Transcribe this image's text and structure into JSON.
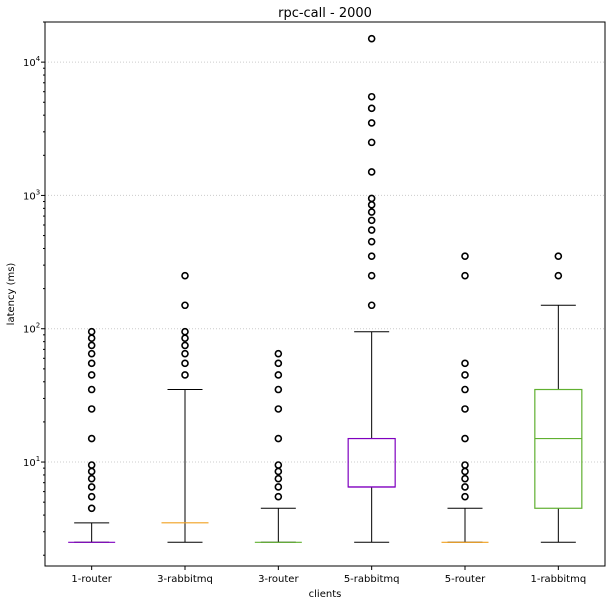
{
  "chart_data": {
    "type": "box",
    "title": "rpc-call - 2000",
    "xlabel": "clients",
    "ylabel": "latency (ms)",
    "yscale": "log",
    "ylim": [
      1.66,
      20000
    ],
    "grid": "y-major-dotted",
    "yticks": [
      {
        "value": 10,
        "label": "10",
        "exp": "1"
      },
      {
        "value": 100,
        "label": "10",
        "exp": "2"
      },
      {
        "value": 1000,
        "label": "10",
        "exp": "3"
      },
      {
        "value": 10000,
        "label": "10",
        "exp": "4"
      }
    ],
    "categories": [
      "1-router",
      "3-rabbitmq",
      "3-router",
      "5-rabbitmq",
      "5-router",
      "1-rabbitmq"
    ],
    "boxes": [
      {
        "name": "1-router",
        "color": "#7f00bf",
        "whislo": 2.5,
        "q1": 2.5,
        "med": 2.5,
        "q3": 2.5,
        "whishi": 3.5,
        "fliers": [
          4.5,
          5.5,
          6.5,
          7.5,
          8.5,
          9.5,
          15,
          25,
          35,
          45,
          55,
          65,
          75,
          85,
          95
        ]
      },
      {
        "name": "3-rabbitmq",
        "color": "#f0a020",
        "whislo": 2.5,
        "q1": 3.5,
        "med": 3.5,
        "q3": 3.5,
        "whishi": 35,
        "fliers": [
          45,
          55,
          65,
          75,
          85,
          95,
          150,
          250
        ]
      },
      {
        "name": "3-router",
        "color": "#60b030",
        "whislo": 2.5,
        "q1": 2.5,
        "med": 2.5,
        "q3": 2.5,
        "whishi": 4.5,
        "fliers": [
          5.5,
          6.5,
          7.5,
          8.5,
          9.5,
          15,
          25,
          35,
          45,
          55,
          65
        ]
      },
      {
        "name": "5-rabbitmq",
        "color": "#7f00bf",
        "whislo": 2.5,
        "q1": 6.5,
        "med": 6.5,
        "q3": 15,
        "whishi": 95,
        "fliers": [
          150,
          250,
          350,
          450,
          550,
          650,
          750,
          850,
          950,
          1500,
          2500,
          3500,
          4500,
          5500,
          15000
        ]
      },
      {
        "name": "5-router",
        "color": "#f0a020",
        "whislo": 2.5,
        "q1": 2.5,
        "med": 2.5,
        "q3": 2.5,
        "whishi": 4.5,
        "fliers": [
          5.5,
          6.5,
          7.5,
          8.5,
          9.5,
          15,
          25,
          35,
          45,
          55,
          250,
          350
        ]
      },
      {
        "name": "1-rabbitmq",
        "color": "#60b030",
        "whislo": 2.5,
        "q1": 4.5,
        "med": 15,
        "q3": 35,
        "whishi": 150,
        "fliers": [
          250,
          350
        ]
      }
    ]
  }
}
